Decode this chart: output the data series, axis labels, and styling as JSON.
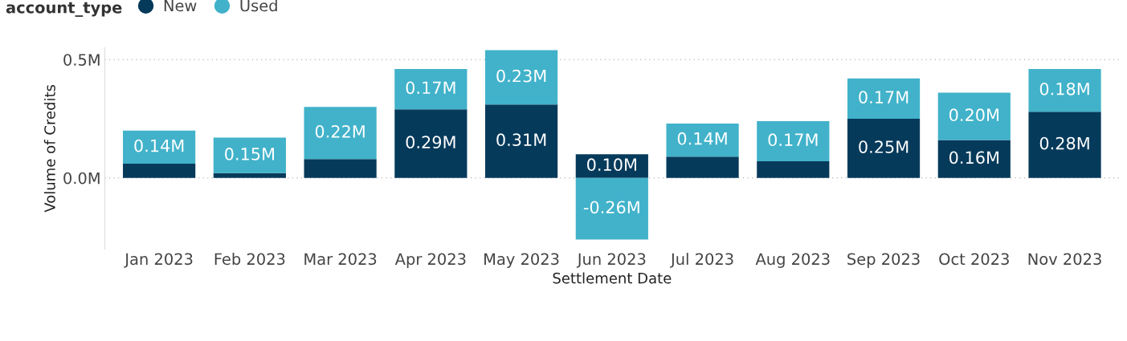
{
  "chart_data": {
    "type": "bar",
    "stacked": true,
    "xlabel": "Settlement Date",
    "ylabel": "Volume of Credits",
    "legend_title": "account_type",
    "legend": "top left",
    "grid": "y",
    "categories": [
      "Jan 2023",
      "Feb 2023",
      "Mar 2023",
      "Apr 2023",
      "May 2023",
      "Jun 2023",
      "Jul 2023",
      "Aug 2023",
      "Sep 2023",
      "Oct 2023",
      "Nov 2023"
    ],
    "series": [
      {
        "name": "New",
        "color": "#063a5b",
        "values": [
          0.06,
          0.02,
          0.08,
          0.29,
          0.31,
          0.1,
          0.09,
          0.07,
          0.25,
          0.16,
          0.28
        ],
        "value_labels": [
          null,
          null,
          null,
          "0.29M",
          "0.31M",
          "0.10M",
          null,
          null,
          "0.25M",
          "0.16M",
          "0.28M"
        ]
      },
      {
        "name": "Used",
        "color": "#41b2ca",
        "values": [
          0.14,
          0.15,
          0.22,
          0.17,
          0.23,
          -0.26,
          0.14,
          0.17,
          0.17,
          0.2,
          0.18
        ],
        "value_labels": [
          "0.14M",
          "0.15M",
          "0.22M",
          "0.17M",
          "0.23M",
          "-0.26M",
          "0.14M",
          "0.17M",
          "0.17M",
          "0.20M",
          "0.18M"
        ]
      }
    ],
    "ylim": [
      -0.3,
      0.55
    ],
    "yticks": [
      {
        "value": 0.0,
        "label": "0.0M"
      },
      {
        "value": 0.5,
        "label": "0.5M"
      }
    ]
  }
}
